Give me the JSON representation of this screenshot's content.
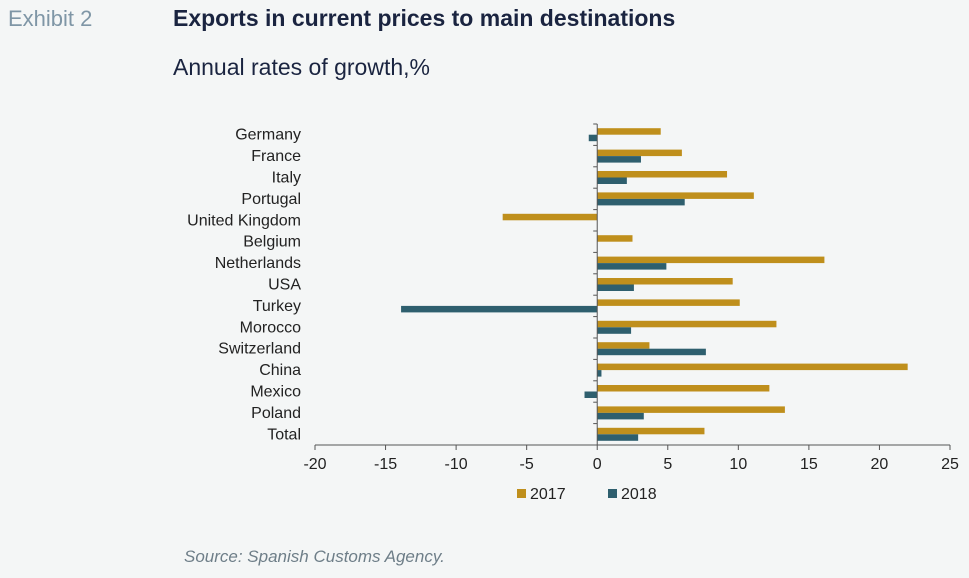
{
  "header": {
    "exhibit": "Exhibit 2",
    "title": "Exports in current prices to main destinations",
    "subtitle": "Annual rates of growth,%"
  },
  "source": "Source: Spanish Customs Agency.",
  "colors": {
    "s2017": "#bf8f1c",
    "s2018": "#2e5f6e",
    "axis": "#555555",
    "text": "#222222"
  },
  "chart_data": {
    "type": "bar",
    "orientation": "horizontal",
    "categories": [
      "Germany",
      "France",
      "Italy",
      "Portugal",
      "United Kingdom",
      "Belgium",
      "Netherlands",
      "USA",
      "Turkey",
      "Morocco",
      "Switzerland",
      "China",
      "Mexico",
      "Poland",
      "Total"
    ],
    "series": [
      {
        "name": "2017",
        "values": [
          4.5,
          6.0,
          9.2,
          11.1,
          -6.7,
          2.5,
          16.1,
          9.6,
          10.1,
          12.7,
          3.7,
          22.0,
          12.2,
          13.3,
          7.6
        ]
      },
      {
        "name": "2018",
        "values": [
          -0.6,
          3.1,
          2.1,
          6.2,
          0.0,
          0.0,
          4.9,
          2.6,
          -13.9,
          2.4,
          7.7,
          0.3,
          -0.9,
          3.3,
          2.9
        ]
      }
    ],
    "xlim": [
      -20,
      25
    ],
    "xticks": [
      -20,
      -15,
      -10,
      -5,
      0,
      5,
      10,
      15,
      20,
      25
    ],
    "legend_position": "bottom",
    "grid": false
  }
}
